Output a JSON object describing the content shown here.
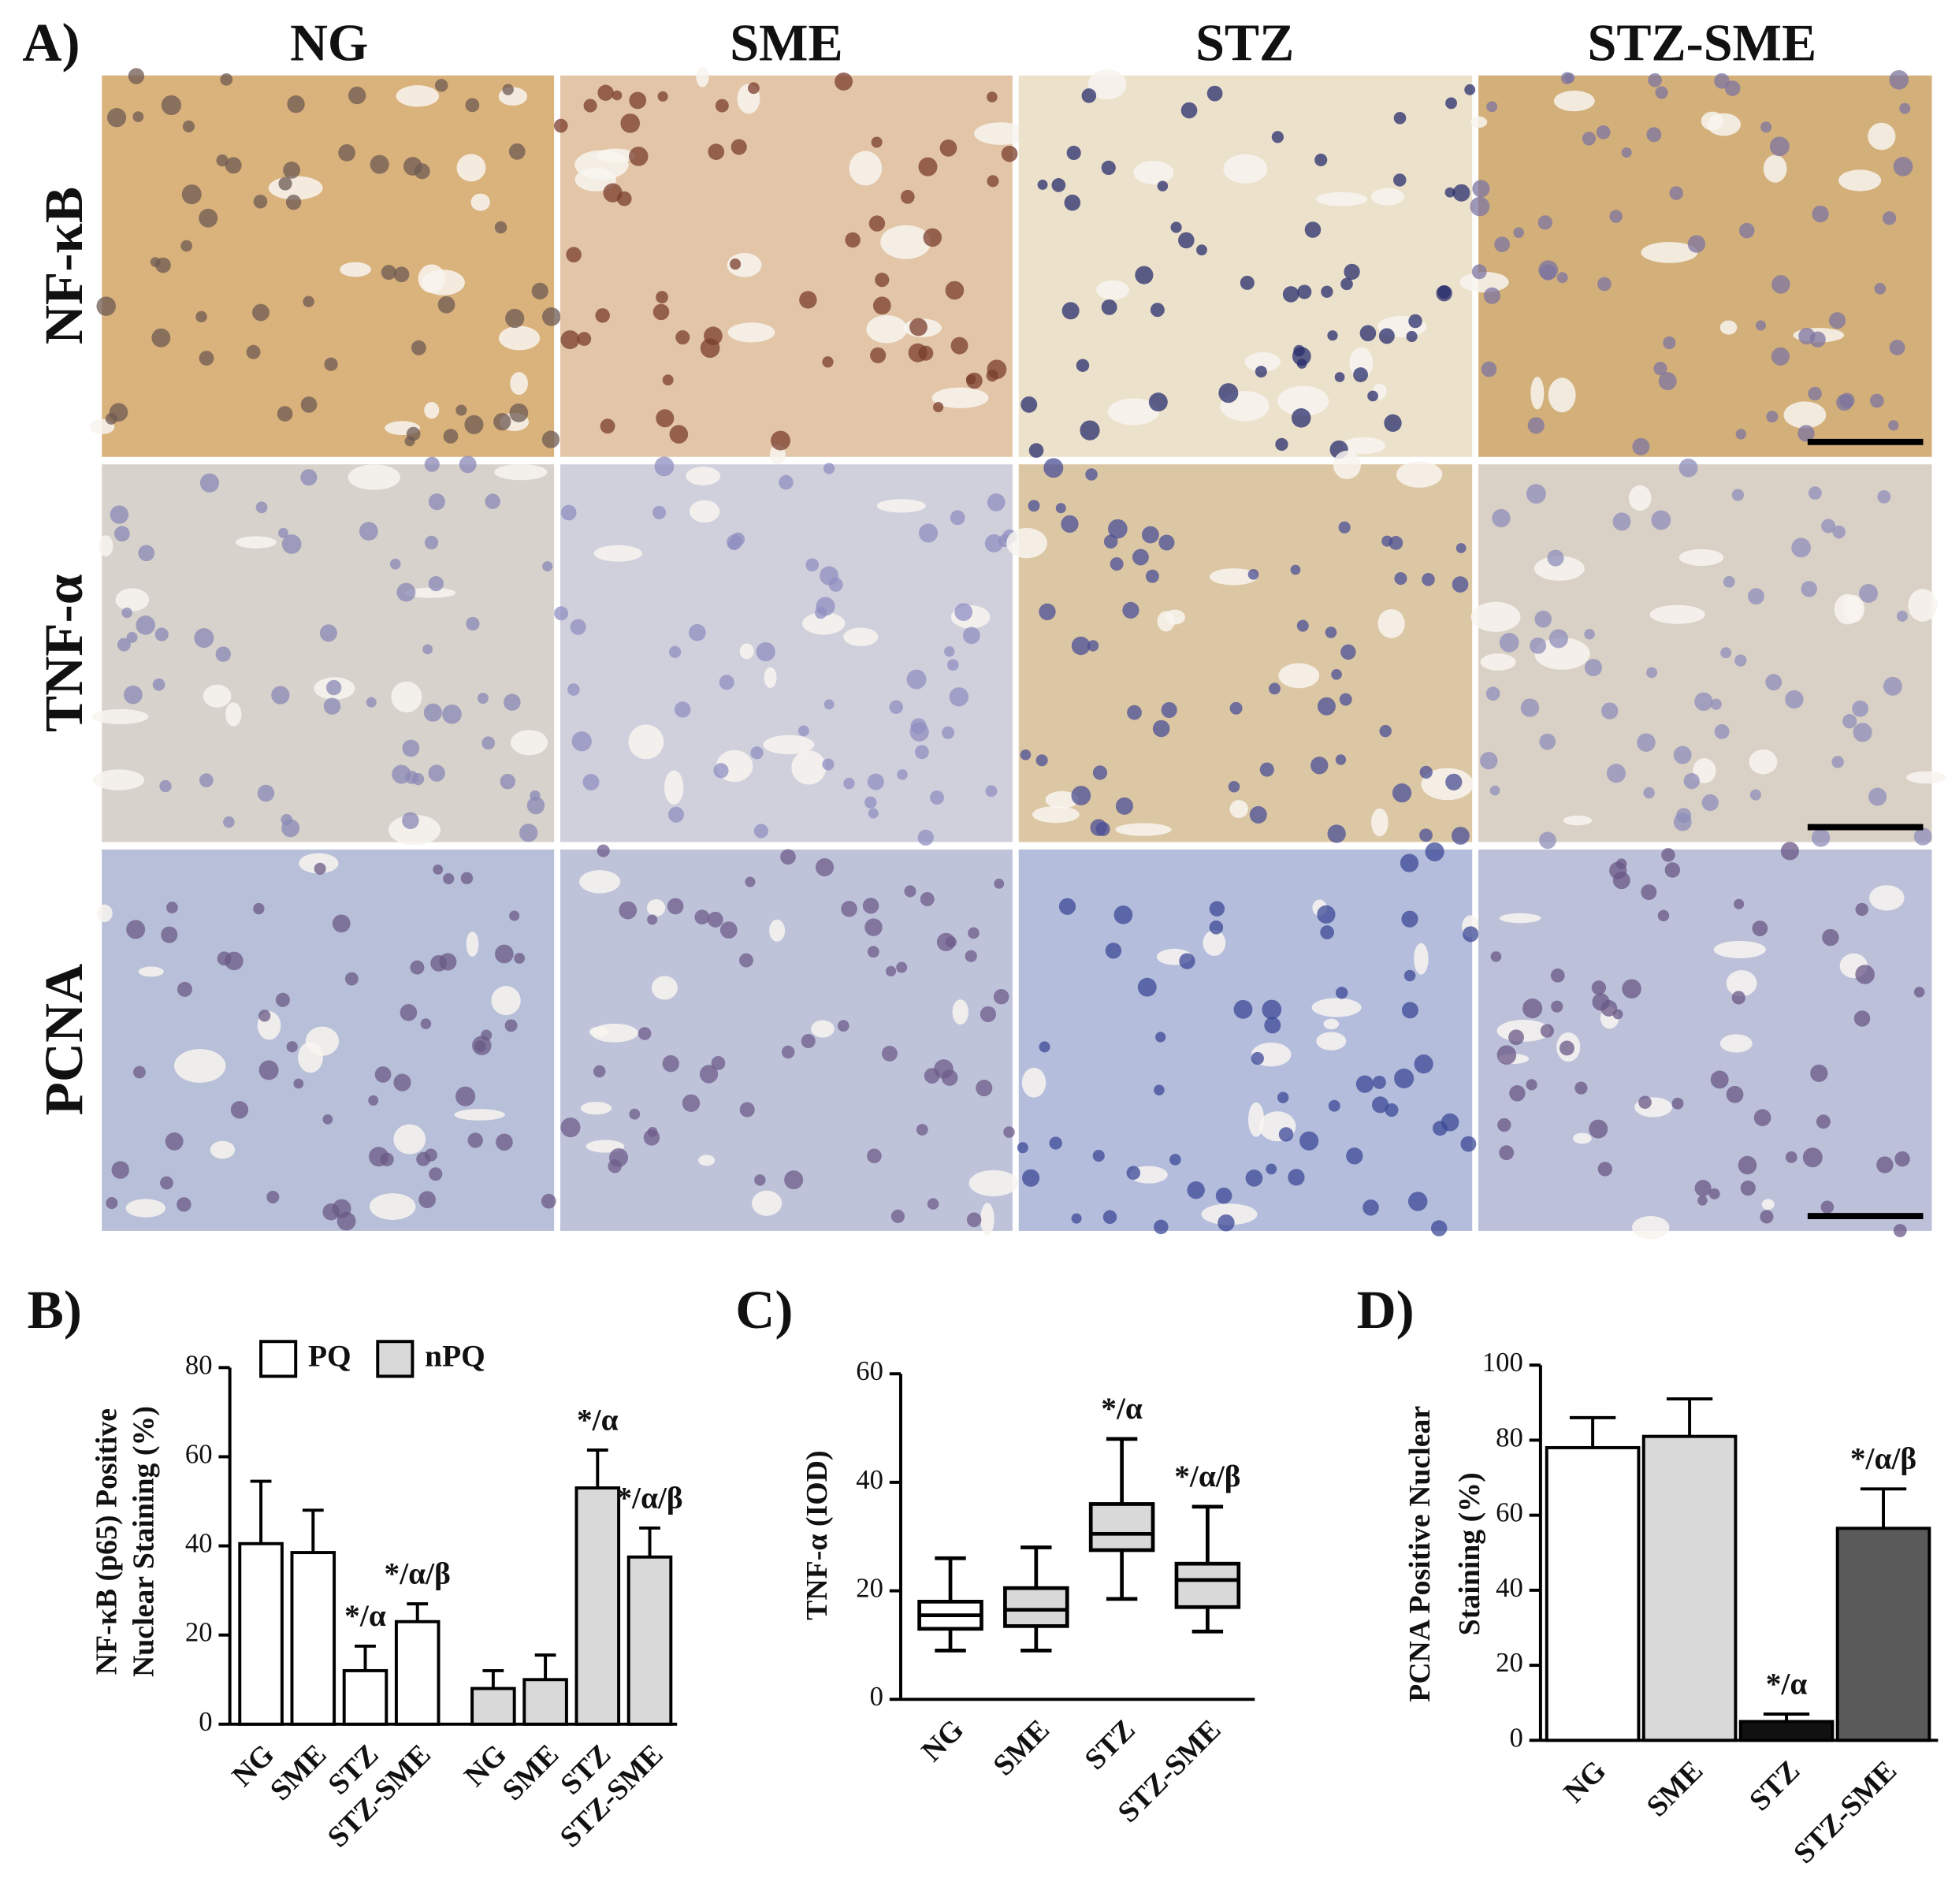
{
  "panel_a": {
    "label": "A)",
    "columns": [
      "NG",
      "SME",
      "STZ",
      "STZ-SME"
    ],
    "rows": [
      "NF-κB",
      "TNF-α",
      "PCNA"
    ]
  },
  "chart_data": [
    {
      "type": "bar",
      "label": "B)",
      "ylabel": [
        "NF-κB (p65)  Positive",
        "Nuclear Staining (%)"
      ],
      "categories": [
        "NG",
        "SME",
        "STZ",
        "STZ-SME"
      ],
      "series": [
        {
          "name": "PQ",
          "color": "#ffffff",
          "values": [
            40.5,
            38.5,
            12,
            23
          ],
          "errors": [
            14,
            9.5,
            5.5,
            4
          ],
          "annotations": [
            null,
            null,
            "*/α",
            "*/α/β"
          ]
        },
        {
          "name": "nPQ",
          "color": "#d9d9d9",
          "values": [
            8,
            10,
            53,
            37.5
          ],
          "errors": [
            4,
            5.5,
            8.5,
            6.5
          ],
          "annotations": [
            null,
            null,
            "*/α",
            "*/α/β"
          ]
        }
      ],
      "ylim": [
        0,
        80
      ],
      "yticks": [
        0,
        20,
        40,
        60,
        80
      ],
      "legend": "top"
    },
    {
      "type": "box",
      "label": "C)",
      "ylabel": [
        "TNF-α (IOD)"
      ],
      "categories": [
        "NG",
        "SME",
        "STZ",
        "STZ-SME"
      ],
      "whisker_low": [
        9,
        9,
        18.5,
        12.5
      ],
      "q1": [
        13,
        13.5,
        27.5,
        17
      ],
      "median": [
        15.5,
        16.5,
        30.5,
        22
      ],
      "q3": [
        18,
        20.5,
        36,
        25
      ],
      "whisker_high": [
        26,
        28,
        48,
        35.5
      ],
      "colors": [
        "#ffffff",
        "#d9d9d9",
        "#d9d9d9",
        "#d9d9d9"
      ],
      "annotations": [
        null,
        null,
        "*/α",
        "*/α/β"
      ],
      "ylim": [
        0,
        60
      ],
      "yticks": [
        0,
        20,
        40,
        60
      ]
    },
    {
      "type": "bar",
      "label": "D)",
      "ylabel": [
        "PCNA Positive Nuclear",
        "Staining (%)"
      ],
      "categories": [
        "NG",
        "SME",
        "STZ",
        "STZ-SME"
      ],
      "series": [
        {
          "values": [
            78,
            81,
            5,
            56.5
          ],
          "errors": [
            8,
            10,
            2,
            10.5
          ],
          "colors": [
            "#ffffff",
            "#d9d9d9",
            "#111111",
            "#5a5a5a"
          ],
          "annotations": [
            null,
            null,
            "*/α",
            "*/α/β"
          ]
        }
      ],
      "ylim": [
        0,
        100
      ],
      "yticks": [
        0,
        20,
        40,
        60,
        80,
        100
      ]
    }
  ]
}
